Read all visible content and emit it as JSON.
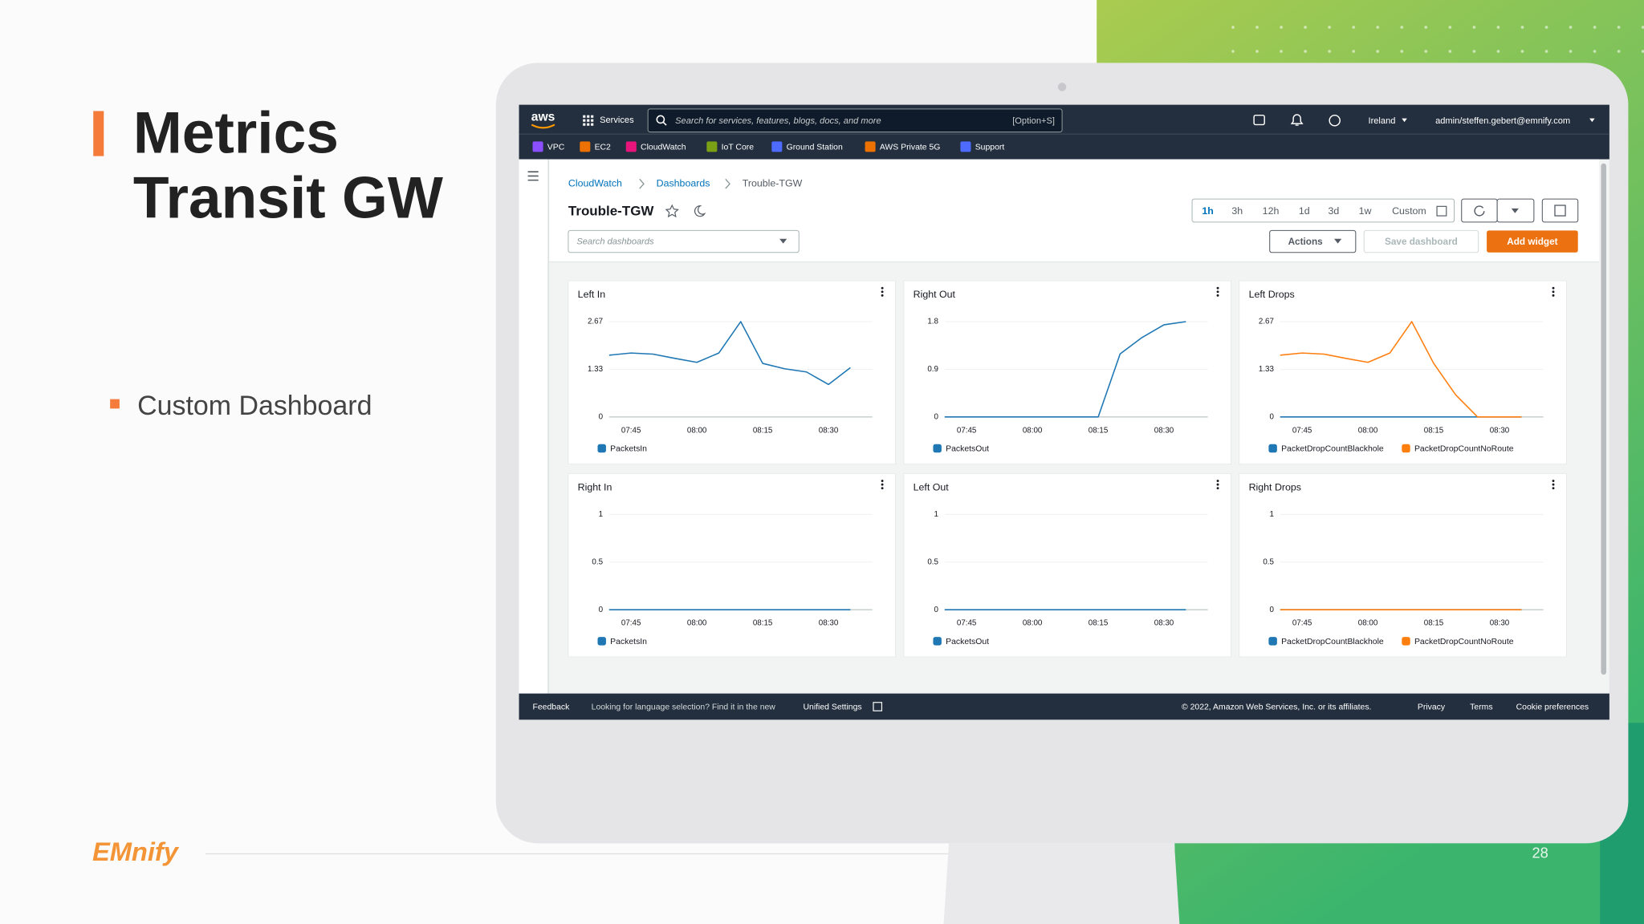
{
  "slide": {
    "title": [
      "Metrics",
      "Transit GW"
    ],
    "bullets": [
      "Custom Dashboard"
    ],
    "logo": "EMnify",
    "page_number": "28"
  },
  "console": {
    "nav": {
      "logo": "aws",
      "services": "Services",
      "search_placeholder": "Search for services, features, blogs, docs, and more",
      "search_shortcut": "[Option+S]",
      "region": "Ireland",
      "account": "admin/steffen.gebert@emnify.com"
    },
    "favorites": [
      "VPC",
      "EC2",
      "CloudWatch",
      "IoT Core",
      "Ground Station",
      "AWS Private 5G",
      "Support"
    ],
    "breadcrumb": [
      "CloudWatch",
      "Dashboards",
      "Trouble-TGW"
    ],
    "dashboard_title": "Trouble-TGW",
    "time_ranges": [
      "1h",
      "3h",
      "12h",
      "1d",
      "3d",
      "1w",
      "Custom"
    ],
    "active_time_range": "1h",
    "search_dashboards": "Search dashboards",
    "buttons": {
      "actions": "Actions",
      "save": "Save dashboard",
      "add": "Add widget"
    },
    "widgets": [
      {
        "title": "Left In",
        "type": "line",
        "x": [
          "07:40",
          "07:45",
          "07:50",
          "07:55",
          "08:00",
          "08:05",
          "08:10",
          "08:15",
          "08:20",
          "08:25",
          "08:30",
          "08:35"
        ],
        "xlim": [
          "07:40",
          "08:40"
        ],
        "xticks": [
          "07:45",
          "08:00",
          "08:15",
          "08:30"
        ],
        "ylim": [
          0,
          2.67
        ],
        "yticks": [
          0,
          1.33,
          2.67
        ],
        "series": [
          {
            "name": "PacketsIn",
            "color": "#1f77b4",
            "values": [
              1.73,
              1.79,
              1.76,
              1.64,
              1.53,
              1.79,
              2.67,
              1.5,
              1.35,
              1.26,
              0.91,
              1.38
            ]
          }
        ]
      },
      {
        "title": "Right Out",
        "type": "line",
        "x": [
          "07:40",
          "07:45",
          "07:50",
          "07:55",
          "08:00",
          "08:05",
          "08:10",
          "08:15",
          "08:20",
          "08:25",
          "08:30",
          "08:35"
        ],
        "xlim": [
          "07:40",
          "08:40"
        ],
        "xticks": [
          "07:45",
          "08:00",
          "08:15",
          "08:30"
        ],
        "ylim": [
          0,
          1.8
        ],
        "yticks": [
          0,
          0.9,
          1.8
        ],
        "series": [
          {
            "name": "PacketsOut",
            "color": "#1f77b4",
            "values": [
              0,
              0,
              0,
              0,
              0,
              0,
              0,
              0,
              1.19,
              1.5,
              1.74,
              1.8
            ]
          }
        ]
      },
      {
        "title": "Left Drops",
        "type": "line",
        "x": [
          "07:40",
          "07:45",
          "07:50",
          "07:55",
          "08:00",
          "08:05",
          "08:10",
          "08:15",
          "08:20",
          "08:25",
          "08:30",
          "08:35"
        ],
        "xlim": [
          "07:40",
          "08:40"
        ],
        "xticks": [
          "07:45",
          "08:00",
          "08:15",
          "08:30"
        ],
        "ylim": [
          0,
          2.67
        ],
        "yticks": [
          0,
          1.33,
          2.67
        ],
        "series": [
          {
            "name": "PacketDropCountBlackhole",
            "color": "#1f77b4",
            "values": [
              0,
              0,
              0,
              0,
              0,
              0,
              0,
              0,
              0,
              0,
              0,
              0
            ]
          },
          {
            "name": "PacketDropCountNoRoute",
            "color": "#ff7f0e",
            "values": [
              1.73,
              1.79,
              1.76,
              1.64,
              1.53,
              1.79,
              2.67,
              1.5,
              0.62,
              0,
              0,
              0
            ]
          }
        ]
      },
      {
        "title": "Right In",
        "type": "line",
        "x": [
          "07:40",
          "07:45",
          "07:50",
          "07:55",
          "08:00",
          "08:05",
          "08:10",
          "08:15",
          "08:20",
          "08:25",
          "08:30",
          "08:35"
        ],
        "xlim": [
          "07:40",
          "08:40"
        ],
        "xticks": [
          "07:45",
          "08:00",
          "08:15",
          "08:30"
        ],
        "ylim": [
          0,
          1
        ],
        "yticks": [
          0,
          0.5,
          1
        ],
        "series": [
          {
            "name": "PacketsIn",
            "color": "#1f77b4",
            "values": [
              0,
              0,
              0,
              0,
              0,
              0,
              0,
              0,
              0,
              0,
              0,
              0
            ]
          }
        ]
      },
      {
        "title": "Left Out",
        "type": "line",
        "x": [
          "07:40",
          "07:45",
          "07:50",
          "07:55",
          "08:00",
          "08:05",
          "08:10",
          "08:15",
          "08:20",
          "08:25",
          "08:30",
          "08:35"
        ],
        "xlim": [
          "07:40",
          "08:40"
        ],
        "xticks": [
          "07:45",
          "08:00",
          "08:15",
          "08:30"
        ],
        "ylim": [
          0,
          1
        ],
        "yticks": [
          0,
          0.5,
          1
        ],
        "series": [
          {
            "name": "PacketsOut",
            "color": "#1f77b4",
            "values": [
              0,
              0,
              0,
              0,
              0,
              0,
              0,
              0,
              0,
              0,
              0,
              0
            ]
          }
        ]
      },
      {
        "title": "Right Drops",
        "type": "line",
        "x": [
          "07:40",
          "07:45",
          "07:50",
          "07:55",
          "08:00",
          "08:05",
          "08:10",
          "08:15",
          "08:20",
          "08:25",
          "08:30",
          "08:35"
        ],
        "xlim": [
          "07:40",
          "08:40"
        ],
        "xticks": [
          "07:45",
          "08:00",
          "08:15",
          "08:30"
        ],
        "ylim": [
          0,
          1
        ],
        "yticks": [
          0,
          0.5,
          1
        ],
        "series": [
          {
            "name": "PacketDropCountBlackhole",
            "color": "#1f77b4",
            "values": [
              0,
              0,
              0,
              0,
              0,
              0,
              0,
              0,
              0,
              0,
              0,
              0
            ]
          },
          {
            "name": "PacketDropCountNoRoute",
            "color": "#ff7f0e",
            "values": [
              0,
              0,
              0,
              0,
              0,
              0,
              0,
              0,
              0,
              0,
              0,
              0
            ]
          }
        ]
      }
    ],
    "footer": {
      "feedback": "Feedback",
      "notice": "Looking for language selection? Find it in the new",
      "unified_settings": "Unified Settings",
      "copyright": "© 2022, Amazon Web Services, Inc. or its affiliates.",
      "privacy": "Privacy",
      "terms": "Terms",
      "cookies": "Cookie preferences"
    }
  }
}
